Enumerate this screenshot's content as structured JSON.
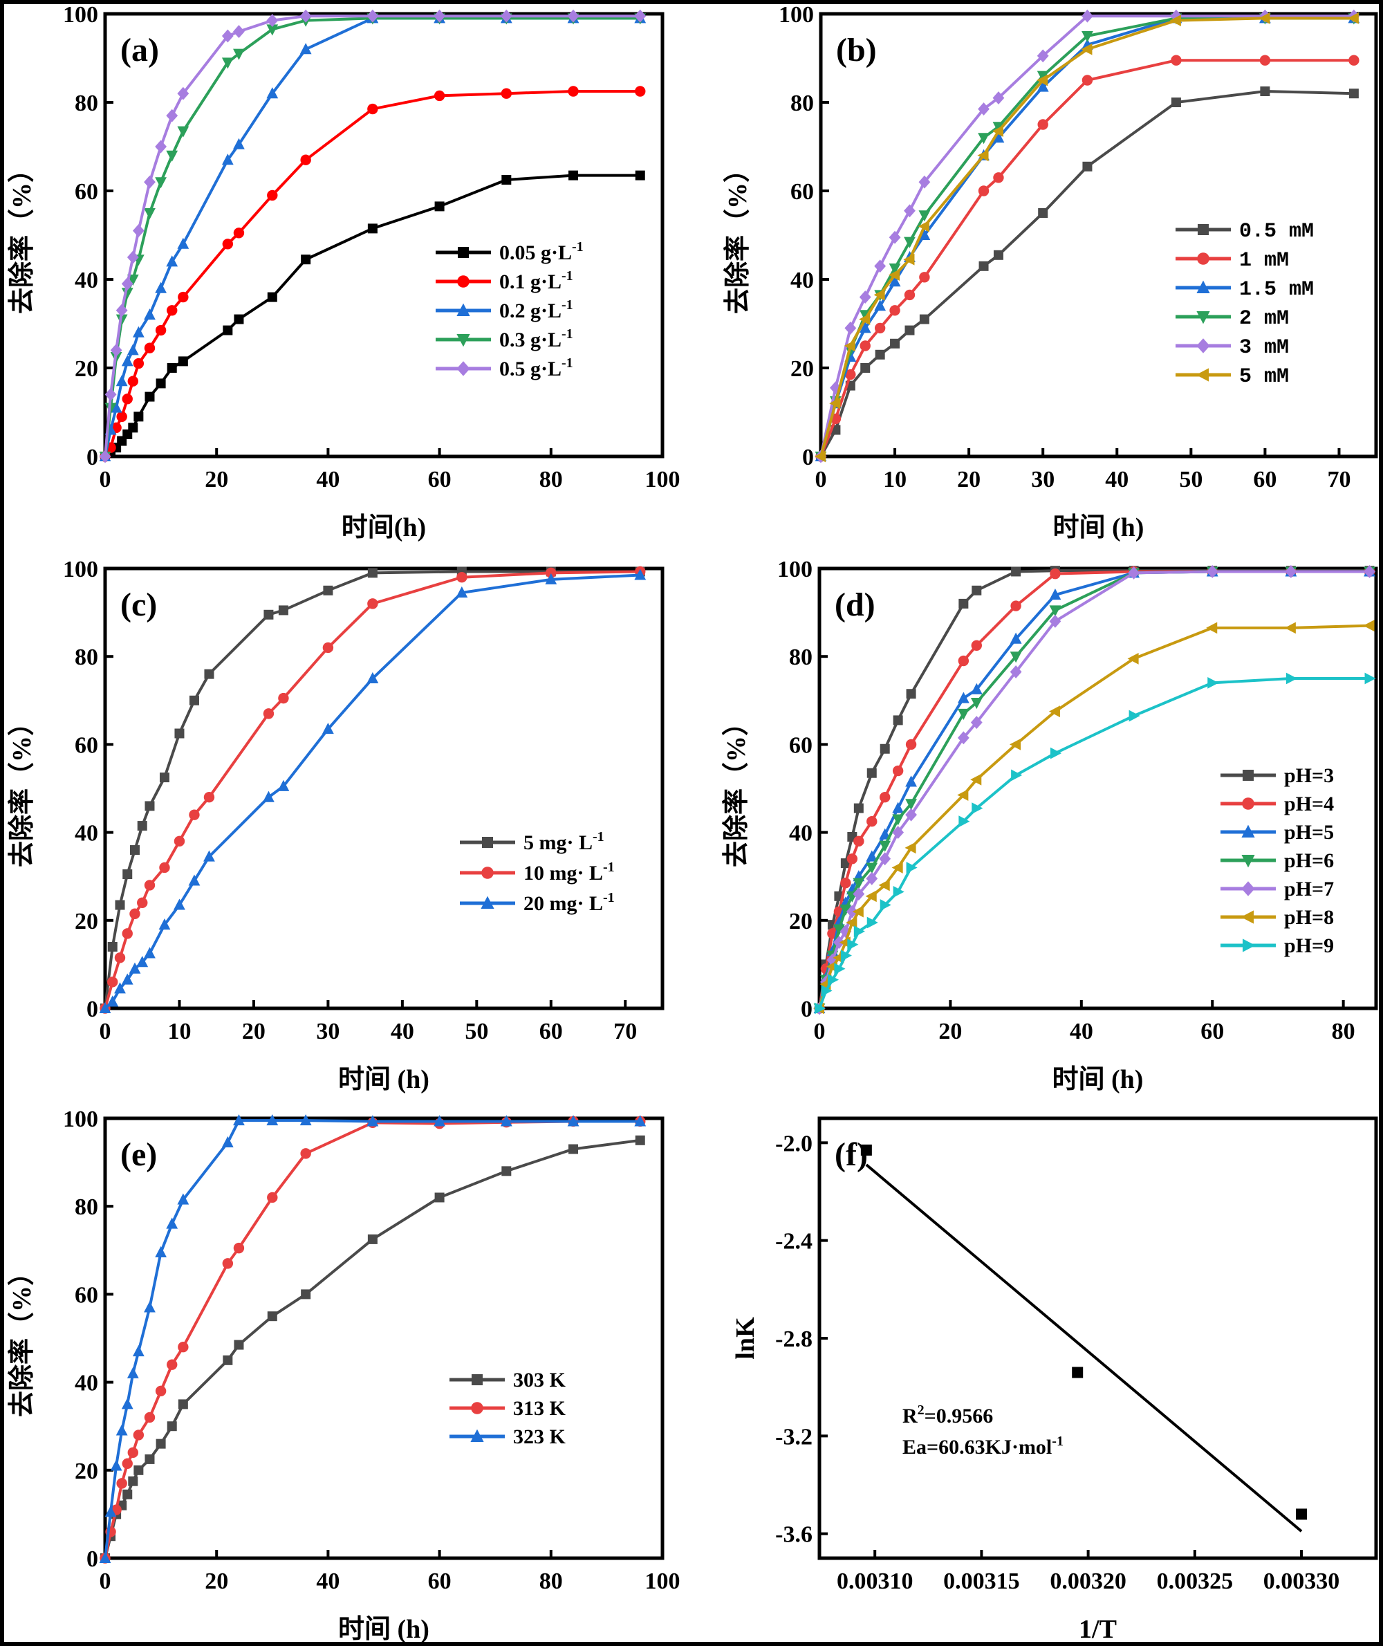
{
  "chart_data": [
    {
      "id": "a",
      "type": "line",
      "panel_label": "(a)",
      "xlabel": "时间(h)",
      "ylabel": "去除率（%）",
      "xlim": [
        0,
        100
      ],
      "ylim": [
        0,
        100
      ],
      "xticks": [
        0,
        20,
        40,
        60,
        80,
        100
      ],
      "yticks": [
        0,
        20,
        40,
        60,
        80,
        100
      ],
      "legend_position": "center-right",
      "x": [
        0,
        1,
        2,
        3,
        4,
        5,
        6,
        8,
        10,
        12,
        14,
        22,
        24,
        30,
        36,
        48,
        60,
        72,
        84,
        96
      ],
      "series": [
        {
          "name": "0.05 g·L",
          "sup": "-1",
          "color": "#000000",
          "marker": "square",
          "values": [
            0,
            1,
            2,
            3.5,
            5,
            6.5,
            9,
            13.5,
            16.5,
            20,
            21.5,
            28.5,
            31,
            36,
            44.5,
            51.5,
            56.5,
            62.5,
            63.5,
            63.5
          ]
        },
        {
          "name": "0.1 g·L",
          "sup": "-1",
          "color": "#ff0000",
          "marker": "circle",
          "values": [
            0,
            2,
            6.5,
            9,
            13,
            17,
            21,
            24.5,
            28.5,
            33,
            36,
            48,
            50.5,
            59,
            67,
            78.5,
            81.5,
            82,
            82.5,
            82.5
          ]
        },
        {
          "name": "0.2 g·L",
          "sup": "-1",
          "color": "#1f6fd6",
          "marker": "triangle-up",
          "values": [
            0,
            6,
            11,
            17,
            21.5,
            24,
            28,
            32,
            38,
            44,
            48,
            67,
            70.5,
            82,
            92,
            99,
            99,
            99,
            99,
            99
          ]
        },
        {
          "name": "0.3 g·L",
          "sup": "-1",
          "color": "#2ca05a",
          "marker": "triangle-down",
          "values": [
            0,
            11,
            22.5,
            31,
            37,
            40,
            44.5,
            55,
            62,
            68,
            73.5,
            89,
            91,
            96.5,
            98.5,
            99,
            99,
            99,
            99,
            99
          ]
        },
        {
          "name": "0.5 g·L",
          "sup": "-1",
          "color": "#a77de0",
          "marker": "diamond",
          "values": [
            0,
            14,
            24,
            33,
            39,
            45,
            51,
            62,
            70,
            77,
            82,
            95,
            96,
            98.5,
            99.5,
            99.5,
            99.5,
            99.5,
            99.5,
            99.5
          ]
        }
      ]
    },
    {
      "id": "b",
      "type": "line",
      "panel_label": "(b)",
      "xlabel": "时间 (h)",
      "ylabel": "去除率（%）",
      "xlim": [
        0,
        75
      ],
      "ylim": [
        0,
        100
      ],
      "xticks": [
        0,
        10,
        20,
        30,
        40,
        50,
        60,
        70
      ],
      "yticks": [
        0,
        20,
        40,
        60,
        80,
        100
      ],
      "legend_position": "center-right",
      "x": [
        0,
        2,
        4,
        6,
        8,
        10,
        12,
        14,
        22,
        24,
        30,
        36,
        48,
        60,
        72
      ],
      "series": [
        {
          "name": "0.5 mM",
          "color": "#4a4a4a",
          "marker": "square",
          "values": [
            0,
            6,
            16,
            20,
            23,
            25.5,
            28.5,
            31,
            43,
            45.5,
            55,
            65.5,
            80,
            82.5,
            82
          ]
        },
        {
          "name": "1 mM",
          "color": "#e84040",
          "marker": "circle",
          "values": [
            0,
            8.5,
            18.5,
            25,
            29,
            33,
            36.5,
            40.5,
            60,
            63,
            75,
            85,
            89.5,
            89.5,
            89.5
          ]
        },
        {
          "name": "1.5 mM",
          "color": "#1f6fd6",
          "marker": "triangle-up",
          "values": [
            0,
            12,
            22.5,
            29,
            34,
            39.5,
            45,
            50,
            68,
            72,
            83.5,
            93,
            99,
            99,
            99
          ]
        },
        {
          "name": "2 mM",
          "color": "#2ca05a",
          "marker": "triangle-down",
          "values": [
            0,
            12.5,
            24,
            32,
            36.5,
            42.5,
            48.5,
            54.5,
            72,
            74.5,
            86,
            95,
            99,
            99,
            99
          ]
        },
        {
          "name": "3 mM",
          "color": "#a77de0",
          "marker": "diamond",
          "values": [
            0,
            15.5,
            29,
            36,
            43,
            49.5,
            55.5,
            62,
            78.5,
            81,
            90.5,
            99.5,
            99.5,
            99.5,
            99.5
          ]
        },
        {
          "name": "5 mM",
          "color": "#c89a10",
          "marker": "triangle-left",
          "values": [
            0,
            12,
            25,
            31,
            36.5,
            41,
            44.5,
            52,
            68,
            73.5,
            85,
            92,
            98.5,
            99,
            99
          ]
        }
      ]
    },
    {
      "id": "c",
      "type": "line",
      "panel_label": "(c)",
      "xlabel": "时间 (h)",
      "ylabel": "去除率（%）",
      "xlim": [
        0,
        75
      ],
      "ylim": [
        0,
        100
      ],
      "xticks": [
        0,
        10,
        20,
        30,
        40,
        50,
        60,
        70
      ],
      "yticks": [
        0,
        20,
        40,
        60,
        80,
        100
      ],
      "legend_position": "center-right",
      "x": [
        0,
        1,
        2,
        3,
        4,
        5,
        6,
        8,
        10,
        12,
        14,
        22,
        24,
        30,
        36,
        48,
        60,
        72
      ],
      "series": [
        {
          "name": "5 mg· L",
          "sup": "-1",
          "color": "#4a4a4a",
          "marker": "square",
          "values": [
            0,
            14,
            23.5,
            30.5,
            36,
            41.5,
            46,
            52.5,
            62.5,
            70,
            76,
            89.5,
            90.5,
            95,
            99,
            99.3,
            99.3,
            99.3
          ]
        },
        {
          "name": "10 mg· L",
          "sup": "-1",
          "color": "#e84040",
          "marker": "circle",
          "values": [
            0,
            6,
            11.5,
            17,
            21.5,
            24,
            28,
            32,
            38,
            44,
            48,
            67,
            70.5,
            82,
            92,
            98,
            99,
            99.3
          ]
        },
        {
          "name": "20 mg· L",
          "sup": "-1",
          "color": "#1f6fd6",
          "marker": "triangle-up",
          "values": [
            0,
            1.5,
            4.5,
            6.5,
            9,
            10.5,
            12.5,
            19,
            23.5,
            29,
            34.5,
            48,
            50.5,
            63.5,
            75,
            94.5,
            97.5,
            98.5
          ]
        }
      ]
    },
    {
      "id": "d",
      "type": "line",
      "panel_label": "(d)",
      "xlabel": "时间 (h)",
      "ylabel": "去除率（%）",
      "xlim": [
        0,
        85
      ],
      "ylim": [
        0,
        100
      ],
      "xticks": [
        0,
        20,
        40,
        60,
        80
      ],
      "yticks": [
        0,
        20,
        40,
        60,
        80,
        100
      ],
      "legend_position": "center-right",
      "x": [
        0,
        1,
        2,
        3,
        4,
        5,
        6,
        8,
        10,
        12,
        14,
        22,
        24,
        30,
        36,
        48,
        60,
        72,
        84
      ],
      "series": [
        {
          "name": "pH=3",
          "color": "#4a4a4a",
          "marker": "square",
          "values": [
            0,
            10,
            19,
            25.5,
            33,
            39,
            45.5,
            53.5,
            59,
            65.5,
            71.5,
            92,
            95,
            99.3,
            99.5,
            99.5,
            99.5,
            99.5,
            99.5
          ]
        },
        {
          "name": "pH=4",
          "color": "#e84040",
          "marker": "circle",
          "values": [
            0,
            9,
            17,
            22,
            28.5,
            34,
            38,
            42.5,
            48,
            54,
            60,
            79,
            82.5,
            91.5,
            98.8,
            99.3,
            99.3,
            99.3,
            99.3
          ]
        },
        {
          "name": "pH=5",
          "color": "#1f6fd6",
          "marker": "triangle-up",
          "values": [
            0,
            7,
            13,
            19.5,
            24,
            27,
            30,
            34.5,
            39.5,
            45.5,
            51.5,
            70.5,
            72.5,
            84,
            94,
            99,
            99.3,
            99.3,
            99.3
          ]
        },
        {
          "name": "pH=6",
          "color": "#2ca05a",
          "marker": "triangle-down",
          "values": [
            0,
            6.5,
            12,
            18,
            22.5,
            25.5,
            28.5,
            32,
            37,
            43,
            46.5,
            67,
            69.5,
            80,
            90.5,
            99,
            99.3,
            99.3,
            99.3
          ]
        },
        {
          "name": "pH=7",
          "color": "#a77de0",
          "marker": "diamond",
          "values": [
            0,
            6,
            11,
            15,
            17.5,
            22,
            26,
            29.5,
            34,
            40,
            44,
            61.5,
            65,
            76.5,
            88,
            99,
            99.3,
            99.3,
            99.3
          ]
        },
        {
          "name": "pH=8",
          "color": "#c89a10",
          "marker": "triangle-left",
          "values": [
            0,
            5.5,
            9.5,
            11.5,
            15,
            19.5,
            22,
            25.5,
            28,
            32,
            36.5,
            48.5,
            52,
            60,
            67.5,
            79.5,
            86.5,
            86.5,
            87
          ]
        },
        {
          "name": "pH=9",
          "color": "#1cc2c8",
          "marker": "triangle-right",
          "values": [
            0,
            4,
            6.5,
            9,
            12,
            14.5,
            17.5,
            19.5,
            23.5,
            26.5,
            32,
            42.5,
            45.5,
            53,
            58,
            66.5,
            74,
            75,
            75
          ]
        }
      ]
    },
    {
      "id": "e",
      "type": "line",
      "panel_label": "(e)",
      "xlabel": "时间 (h)",
      "ylabel": "去除率（%）",
      "xlim": [
        0,
        100
      ],
      "ylim": [
        0,
        100
      ],
      "xticks": [
        0,
        20,
        40,
        60,
        80,
        100
      ],
      "yticks": [
        0,
        20,
        40,
        60,
        80,
        100
      ],
      "legend_position": "center-right",
      "x": [
        0,
        1,
        2,
        3,
        4,
        5,
        6,
        8,
        10,
        12,
        14,
        22,
        24,
        30,
        36,
        48,
        60,
        72,
        84,
        96
      ],
      "series": [
        {
          "name": "303  K",
          "color": "#4a4a4a",
          "marker": "square",
          "values": [
            0,
            5,
            10,
            12,
            14.5,
            17.5,
            20,
            22.5,
            26,
            30,
            35,
            45,
            48.5,
            55,
            60,
            72.5,
            82,
            88,
            93,
            95
          ]
        },
        {
          "name": "313  K",
          "color": "#e84040",
          "marker": "circle",
          "values": [
            0,
            6,
            11,
            17,
            21.5,
            24,
            28,
            32,
            38,
            44,
            48,
            67,
            70.5,
            82,
            92,
            99,
            98.8,
            99.1,
            99.3,
            99.3
          ]
        },
        {
          "name": "323  K",
          "color": "#1f6fd6",
          "marker": "triangle-up",
          "values": [
            0,
            10.5,
            21,
            29,
            35,
            42,
            47,
            57,
            69.5,
            76,
            81.5,
            94.5,
            99.5,
            99.5,
            99.5,
            99.3,
            99.3,
            99.3,
            99.3,
            99.3
          ]
        }
      ]
    },
    {
      "id": "f",
      "type": "scatter",
      "panel_label": "(f)",
      "xlabel": "1/T",
      "ylabel": "lnK",
      "xlim": [
        0.003074,
        0.003335
      ],
      "ylim": [
        -3.7,
        -1.9
      ],
      "xticks": [
        0.0031,
        0.00315,
        0.0032,
        0.00325,
        0.0033
      ],
      "xtick_labels": [
        "0.00310",
        "0.00315",
        "0.00320",
        "0.00325",
        "0.00330"
      ],
      "yticks": [
        -3.6,
        -3.2,
        -2.8,
        -2.4,
        -2.0
      ],
      "ytick_labels": [
        "-3.6",
        "-3.2",
        "-2.8",
        "-2.4",
        "-2.0"
      ],
      "points": {
        "x": [
          0.003096,
          0.003195,
          0.0033
        ],
        "y": [
          -2.03,
          -2.94,
          -3.52
        ]
      },
      "fit_line": {
        "x": [
          0.003096,
          0.0033
        ],
        "y": [
          -2.09,
          -3.59
        ]
      },
      "annotations": {
        "r2_prefix": "R",
        "r2_sup": "2",
        "r2_value": "=0.9566",
        "ea_text": "Ea=60.63KJ·mol",
        "ea_sup": "-1"
      }
    }
  ]
}
